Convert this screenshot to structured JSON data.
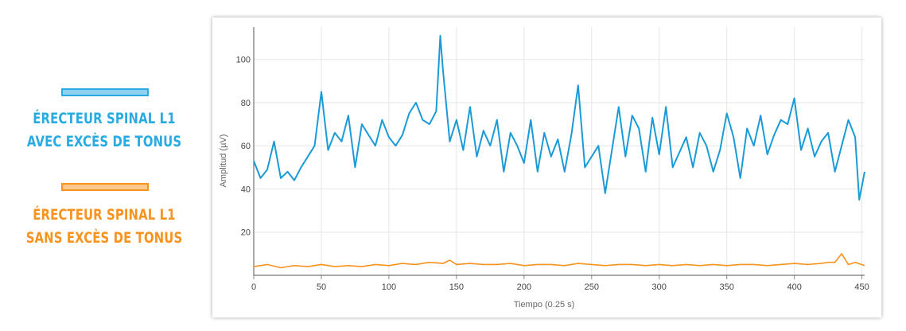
{
  "legend": {
    "items": [
      {
        "line1": "ÉRECTEUR SPINAL L1",
        "line2": "AVEC EXCÈS DE TONUS",
        "color": "#29abe2",
        "fill": "#8fd0f0"
      },
      {
        "line1": "ÉRECTEUR SPINAL L1",
        "line2": "SANS EXCÈS DE TONUS",
        "color": "#f7931e",
        "fill": "#fbc78a"
      }
    ]
  },
  "chart_data": {
    "type": "line",
    "xlabel": "Tiempo (0.25 s)",
    "ylabel": "Amplitud (µV)",
    "xlim": [
      0,
      452
    ],
    "ylim": [
      0,
      115
    ],
    "xticks": [
      0,
      50,
      100,
      150,
      200,
      250,
      300,
      350,
      400,
      450
    ],
    "yticks": [
      20,
      40,
      60,
      80,
      100
    ],
    "grid": true,
    "series": [
      {
        "name": "ÉRECTEUR SPINAL L1 AVEC EXCÈS DE TONUS",
        "color": "#1a9bd7",
        "x": [
          0,
          5,
          10,
          15,
          20,
          25,
          30,
          35,
          40,
          45,
          50,
          55,
          60,
          65,
          70,
          75,
          80,
          85,
          90,
          95,
          100,
          105,
          110,
          115,
          120,
          125,
          130,
          135,
          138,
          140,
          145,
          150,
          155,
          160,
          165,
          170,
          175,
          180,
          185,
          190,
          195,
          200,
          205,
          210,
          215,
          220,
          225,
          230,
          235,
          240,
          245,
          250,
          255,
          260,
          265,
          270,
          275,
          280,
          285,
          290,
          295,
          300,
          305,
          310,
          315,
          320,
          325,
          330,
          335,
          340,
          345,
          350,
          355,
          360,
          365,
          370,
          375,
          380,
          385,
          390,
          395,
          400,
          405,
          410,
          415,
          420,
          425,
          430,
          435,
          440,
          445,
          448,
          452
        ],
        "y": [
          53,
          45,
          49,
          62,
          45,
          48,
          44,
          50,
          55,
          60,
          85,
          58,
          66,
          62,
          74,
          50,
          70,
          65,
          60,
          72,
          64,
          60,
          65,
          75,
          80,
          72,
          70,
          76,
          111,
          95,
          62,
          72,
          58,
          78,
          55,
          67,
          60,
          72,
          48,
          66,
          60,
          52,
          72,
          48,
          66,
          55,
          63,
          48,
          65,
          88,
          50,
          55,
          60,
          38,
          58,
          78,
          55,
          74,
          68,
          48,
          73,
          56,
          78,
          50,
          57,
          64,
          50,
          66,
          60,
          48,
          58,
          75,
          64,
          45,
          68,
          60,
          74,
          56,
          65,
          72,
          70,
          82,
          58,
          68,
          55,
          62,
          66,
          48,
          60,
          72,
          64,
          35,
          48
        ]
      },
      {
        "name": "ÉRECTEUR SPINAL L1 SANS EXCÈS DE TONUS",
        "color": "#f7931e",
        "x": [
          0,
          10,
          20,
          30,
          40,
          50,
          60,
          70,
          80,
          90,
          100,
          110,
          120,
          130,
          140,
          145,
          150,
          160,
          170,
          180,
          190,
          200,
          210,
          220,
          230,
          240,
          250,
          260,
          270,
          280,
          290,
          300,
          310,
          320,
          330,
          340,
          350,
          360,
          370,
          380,
          390,
          400,
          410,
          420,
          425,
          430,
          435,
          440,
          445,
          452
        ],
        "y": [
          4,
          5,
          3.5,
          4.5,
          4,
          5,
          4,
          4.5,
          4,
          5,
          4.5,
          5.5,
          5,
          6,
          5.5,
          7,
          5,
          5.5,
          5,
          5,
          5.5,
          4.5,
          5,
          5,
          4.5,
          5.5,
          5,
          4.5,
          5,
          5,
          4.5,
          5,
          4.5,
          5,
          4.5,
          5,
          4.5,
          5,
          5,
          4.5,
          5,
          5.5,
          5,
          5.5,
          6,
          6,
          10,
          5,
          6,
          4.5
        ]
      }
    ]
  }
}
